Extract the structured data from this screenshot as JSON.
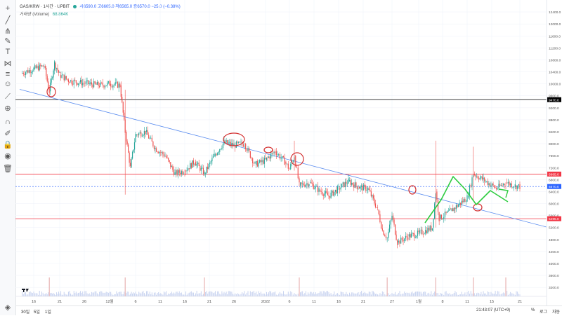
{
  "header": {
    "symbol": "GAS/KRW · 1시간 · UPBIT",
    "ohlc": "시6590.0 고6605.0 저6565.0 종6570.0 −25.0 (−0.38%)",
    "volume_label": "거래량 (Volume)",
    "volume_value": "68.864K"
  },
  "toolbar": {
    "icons": [
      "crosshair-icon",
      "trend-line-icon",
      "pitchfork-icon",
      "brush-icon",
      "text-icon",
      "pattern-icon",
      "prediction-icon",
      "shapes-icon",
      "ruler-icon",
      "zoom-icon",
      "magnet-icon",
      "lock-drawing-icon",
      "lock-icon",
      "eye-icon",
      "trash-icon",
      "object-tree-icon"
    ]
  },
  "bottom_bar": {
    "ranges": [
      "30일",
      "5일",
      "1일"
    ],
    "time": "21:43:07 (UTC+9)",
    "percent": "%",
    "log": "로그",
    "auto": "자동"
  },
  "chart_data": {
    "type": "candlestick",
    "y_ticks": [
      "12400.0",
      "12000.0",
      "11600.0",
      "11200.0",
      "10800.0",
      "10400.0",
      "10000.0",
      "9600.0",
      "9200.0",
      "8800.0",
      "8400.0",
      "8000.0",
      "7600.0",
      "7200.0",
      "6800.0",
      "6400.0",
      "6000.0",
      "5600.0",
      "5200.0",
      "4800.0",
      "4400.0",
      "4000.0",
      "3600.0",
      "3200.0"
    ],
    "ylim": [
      2900,
      12800
    ],
    "x_ticks": [
      "16",
      "21",
      "26",
      "12월",
      "6",
      "11",
      "16",
      "21",
      "26",
      "2022",
      "6",
      "11",
      "16",
      "21",
      "27",
      "1월",
      "8",
      "11",
      "15",
      "21"
    ],
    "price_labels": [
      {
        "value": 9470,
        "label": "9470.0",
        "color": "#000000"
      },
      {
        "value": 6985,
        "label": "6985.0",
        "color": "#f23645"
      },
      {
        "value": 6570,
        "label": "6570.0",
        "color": "#2962ff"
      },
      {
        "value": 5495,
        "label": "5495.0",
        "color": "#f23645"
      }
    ],
    "horizontal_lines": [
      {
        "value": 9470,
        "color": "#000000"
      },
      {
        "value": 6985,
        "color": "#f23645"
      },
      {
        "value": 5495,
        "color": "#f23645"
      }
    ],
    "trend_line": {
      "from": {
        "x": "11/19",
        "y": 9700
      },
      "to": {
        "x": "2/22",
        "y": 5450
      }
    },
    "price_path": [
      {
        "d": "11/14",
        "c": 10350
      },
      {
        "d": "11/16",
        "c": 10500
      },
      {
        "d": "11/18",
        "c": 10600
      },
      {
        "d": "11/19",
        "c": 9750
      },
      {
        "d": "11/20",
        "c": 10700
      },
      {
        "d": "11/21",
        "c": 10300
      },
      {
        "d": "11/23",
        "c": 10100
      },
      {
        "d": "11/25",
        "c": 10050
      },
      {
        "d": "11/27",
        "c": 10000
      },
      {
        "d": "11/29",
        "c": 9950
      },
      {
        "d": "12/1",
        "c": 10000
      },
      {
        "d": "12/3",
        "c": 9950
      },
      {
        "d": "12/4",
        "c": 8400
      },
      {
        "d": "12/5",
        "c": 7200
      },
      {
        "d": "12/6",
        "c": 8300
      },
      {
        "d": "12/8",
        "c": 8400
      },
      {
        "d": "12/10",
        "c": 7850
      },
      {
        "d": "12/12",
        "c": 7600
      },
      {
        "d": "12/14",
        "c": 7000
      },
      {
        "d": "12/16",
        "c": 7100
      },
      {
        "d": "12/18",
        "c": 7400
      },
      {
        "d": "12/20",
        "c": 7000
      },
      {
        "d": "12/22",
        "c": 7600
      },
      {
        "d": "12/24",
        "c": 8050
      },
      {
        "d": "12/26",
        "c": 7950
      },
      {
        "d": "12/28",
        "c": 8000
      },
      {
        "d": "12/30",
        "c": 7300
      },
      {
        "d": "1/1",
        "c": 7450
      },
      {
        "d": "1/3",
        "c": 7750
      },
      {
        "d": "1/5",
        "c": 7400
      },
      {
        "d": "1/6",
        "c": 7150
      },
      {
        "d": "1/7",
        "c": 7600
      },
      {
        "d": "1/8",
        "c": 6600
      },
      {
        "d": "1/10",
        "c": 6700
      },
      {
        "d": "1/12",
        "c": 6450
      },
      {
        "d": "1/14",
        "c": 6250
      },
      {
        "d": "1/16",
        "c": 6500
      },
      {
        "d": "1/18",
        "c": 6750
      },
      {
        "d": "1/20",
        "c": 6550
      },
      {
        "d": "1/22",
        "c": 6500
      },
      {
        "d": "1/24",
        "c": 5800
      },
      {
        "d": "1/25",
        "c": 5100
      },
      {
        "d": "1/26",
        "c": 4850
      },
      {
        "d": "1/27",
        "c": 5600
      },
      {
        "d": "1/28",
        "c": 4700
      },
      {
        "d": "1/30",
        "c": 4900
      },
      {
        "d": "2/1",
        "c": 5000
      },
      {
        "d": "2/3",
        "c": 5100
      },
      {
        "d": "2/5",
        "c": 5200
      },
      {
        "d": "2/6",
        "c": 6400
      },
      {
        "d": "2/7",
        "c": 5500
      },
      {
        "d": "2/9",
        "c": 5750
      },
      {
        "d": "2/11",
        "c": 6200
      },
      {
        "d": "2/12",
        "c": 7000
      },
      {
        "d": "2/14",
        "c": 6750
      },
      {
        "d": "2/16",
        "c": 6500
      },
      {
        "d": "2/18",
        "c": 6700
      },
      {
        "d": "2/20",
        "c": 6600
      },
      {
        "d": "2/21",
        "c": 6570
      }
    ],
    "volume_spikes": [
      "11/19",
      "12/4",
      "12/20",
      "1/8",
      "1/26",
      "2/6",
      "2/12",
      "2/18"
    ]
  }
}
